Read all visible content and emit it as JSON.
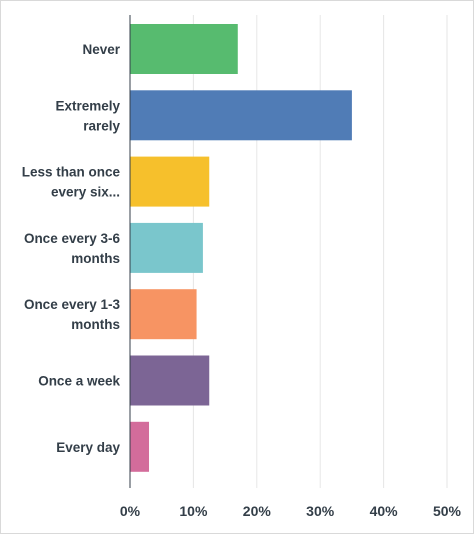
{
  "chart_data": {
    "type": "bar",
    "orientation": "horizontal",
    "categories": [
      [
        "Never"
      ],
      [
        "Extremely",
        "rarely"
      ],
      [
        "Less than once",
        "every six..."
      ],
      [
        "Once every 3-6",
        "months"
      ],
      [
        "Once every 1-3",
        "months"
      ],
      [
        "Once a week"
      ],
      [
        "Every day"
      ]
    ],
    "values": [
      17,
      35,
      12.5,
      11.5,
      10.5,
      12.5,
      3
    ],
    "colors": [
      "#57bb6f",
      "#507cb6",
      "#f6c02c",
      "#7ac6cc",
      "#f79463",
      "#7c6595",
      "#d36c9b"
    ],
    "x_ticks": [
      "0%",
      "10%",
      "20%",
      "30%",
      "40%",
      "50%"
    ],
    "xlim": [
      0,
      50
    ],
    "unit": "%",
    "grid": true,
    "title": "",
    "xlabel": "",
    "ylabel": ""
  }
}
